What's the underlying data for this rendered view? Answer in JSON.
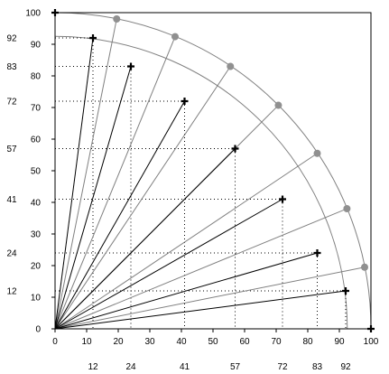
{
  "chart_data": {
    "type": "scatter",
    "title": "",
    "xlabel": "",
    "ylabel": "",
    "xlim": [
      0,
      100
    ],
    "ylim": [
      0,
      100
    ],
    "grid": false,
    "legend": "none",
    "x_ticks": [
      "0",
      "10",
      "20",
      "30",
      "40",
      "50",
      "60",
      "70",
      "80",
      "90",
      "100"
    ],
    "y_ticks": [
      "0",
      "10",
      "20",
      "30",
      "40",
      "50",
      "60",
      "70",
      "80",
      "90",
      "100"
    ],
    "x_extra_labels": [
      "12",
      "24",
      "41",
      "57",
      "72",
      "83",
      "92"
    ],
    "y_extra_labels": [
      "12",
      "24",
      "41",
      "57",
      "72",
      "83",
      "92"
    ],
    "arcs": [
      {
        "radius": 92.5,
        "color": "#808080"
      },
      {
        "radius": 100,
        "color": "#808080"
      }
    ],
    "series": [
      {
        "marker": "plus",
        "color": "#000000",
        "points": [
          {
            "x": 0,
            "y": 100
          },
          {
            "x": 12,
            "y": 92
          },
          {
            "x": 24,
            "y": 83
          },
          {
            "x": 41,
            "y": 72
          },
          {
            "x": 57,
            "y": 57
          },
          {
            "x": 72,
            "y": 41
          },
          {
            "x": 83,
            "y": 24
          },
          {
            "x": 92,
            "y": 12
          },
          {
            "x": 100,
            "y": 0
          }
        ]
      },
      {
        "marker": "circle",
        "color": "#909090",
        "points": [
          {
            "x": 19.5,
            "y": 98
          },
          {
            "x": 38,
            "y": 92.4
          },
          {
            "x": 55.5,
            "y": 83
          },
          {
            "x": 70.7,
            "y": 70.7
          },
          {
            "x": 83,
            "y": 55.5
          },
          {
            "x": 92.4,
            "y": 38
          },
          {
            "x": 98,
            "y": 19.5
          }
        ]
      }
    ]
  }
}
